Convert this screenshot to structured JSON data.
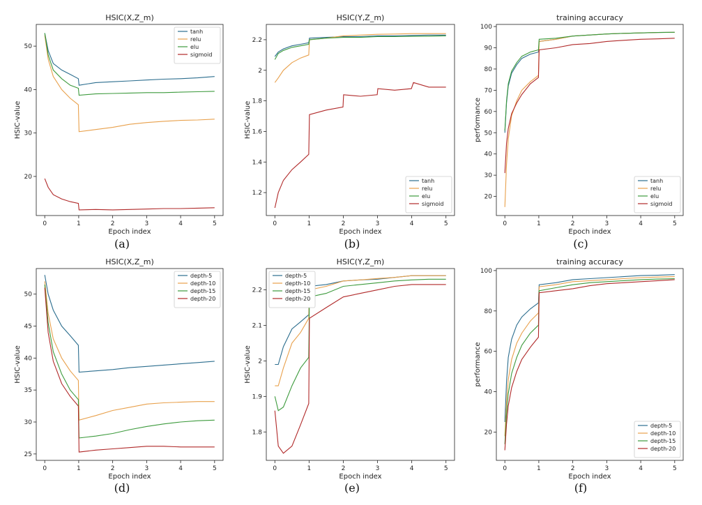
{
  "colors": {
    "tanh": "#2b6d8e",
    "relu": "#e8a04b",
    "elu": "#3c9a3c",
    "sigmoid": "#b02828",
    "depth-5": "#2b6d8e",
    "depth-10": "#e8a04b",
    "depth-15": "#3c9a3c",
    "depth-20": "#b02828",
    "axis": "#222222"
  },
  "chart_data": [
    {
      "id": "a",
      "type": "line",
      "caption": "(a)",
      "title": "HSIC(X,Z_m)",
      "xlabel": "Epoch index",
      "ylabel": "HSIC-value",
      "xlim": [
        -0.25,
        5.25
      ],
      "ylim": [
        11,
        55
      ],
      "xticks": [
        0,
        1,
        2,
        3,
        4,
        5
      ],
      "yticks": [
        20,
        30,
        40,
        50
      ],
      "legend_position": "top-right",
      "series": [
        {
          "name": "tanh",
          "x": [
            0,
            0.1,
            0.25,
            0.5,
            0.75,
            0.99,
            1.01,
            1.5,
            2,
            2.5,
            3,
            3.5,
            4,
            4.5,
            5
          ],
          "values": [
            53,
            49,
            46,
            44.5,
            43.5,
            42.5,
            41,
            41.6,
            41.8,
            42,
            42.2,
            42.4,
            42.5,
            42.7,
            43
          ]
        },
        {
          "name": "relu",
          "x": [
            0,
            0.1,
            0.25,
            0.5,
            0.75,
            0.99,
            1.01,
            1.5,
            2,
            2.5,
            3,
            3.5,
            4,
            4.5,
            5
          ],
          "values": [
            52.5,
            47,
            43,
            40,
            38,
            36.5,
            30.3,
            30.8,
            31.3,
            32,
            32.4,
            32.7,
            32.9,
            33,
            33.2
          ]
        },
        {
          "name": "elu",
          "x": [
            0,
            0.1,
            0.25,
            0.5,
            0.75,
            0.99,
            1.01,
            1.5,
            2,
            2.5,
            3,
            3.5,
            4,
            4.5,
            5
          ],
          "values": [
            53,
            48,
            44.5,
            42.5,
            41,
            40.3,
            38.7,
            39,
            39.1,
            39.2,
            39.3,
            39.3,
            39.4,
            39.5,
            39.6
          ]
        },
        {
          "name": "sigmoid",
          "x": [
            0,
            0.1,
            0.25,
            0.5,
            0.75,
            0.99,
            1.01,
            1.5,
            2,
            2.5,
            3,
            3.5,
            4,
            4.5,
            5
          ],
          "values": [
            19.5,
            17.5,
            15.8,
            14.8,
            14.2,
            13.8,
            12.3,
            12.4,
            12.3,
            12.4,
            12.5,
            12.6,
            12.6,
            12.7,
            12.8
          ]
        }
      ]
    },
    {
      "id": "b",
      "type": "line",
      "caption": "(b)",
      "title": "HSIC(Y,Z_m)",
      "xlabel": "Epoch index",
      "ylabel": "HSIC-value",
      "xlim": [
        -0.25,
        5.25
      ],
      "ylim": [
        1.05,
        2.3
      ],
      "xticks": [
        0,
        1,
        2,
        3,
        4,
        5
      ],
      "yticks": [
        1.2,
        1.4,
        1.6,
        1.8,
        2.0,
        2.2
      ],
      "legend_position": "bottom-right",
      "series": [
        {
          "name": "tanh",
          "x": [
            0,
            0.1,
            0.25,
            0.5,
            0.75,
            0.99,
            1.01,
            1.5,
            2,
            2.5,
            3,
            3.5,
            4,
            4.5,
            5
          ],
          "values": [
            2.09,
            2.12,
            2.14,
            2.16,
            2.17,
            2.18,
            2.21,
            2.215,
            2.22,
            2.22,
            2.225,
            2.225,
            2.228,
            2.23,
            2.23
          ]
        },
        {
          "name": "relu",
          "x": [
            0,
            0.1,
            0.25,
            0.5,
            0.75,
            0.99,
            1.01,
            1.5,
            2,
            2.5,
            3,
            3.5,
            4,
            4.5,
            5
          ],
          "values": [
            1.92,
            1.95,
            2.0,
            2.05,
            2.08,
            2.1,
            2.2,
            2.21,
            2.225,
            2.23,
            2.235,
            2.237,
            2.24,
            2.24,
            2.24
          ]
        },
        {
          "name": "elu",
          "x": [
            0,
            0.1,
            0.25,
            0.5,
            0.75,
            0.99,
            1.01,
            1.5,
            2,
            2.5,
            3,
            3.5,
            4,
            4.5,
            5
          ],
          "values": [
            2.07,
            2.11,
            2.13,
            2.15,
            2.16,
            2.17,
            2.2,
            2.21,
            2.215,
            2.215,
            2.22,
            2.22,
            2.222,
            2.223,
            2.225
          ]
        },
        {
          "name": "sigmoid",
          "x": [
            0,
            0.1,
            0.25,
            0.5,
            0.75,
            0.99,
            1.01,
            1.5,
            1.99,
            2.01,
            2.5,
            2.99,
            3.01,
            3.5,
            3.99,
            4.05,
            4.5,
            5
          ],
          "values": [
            1.1,
            1.2,
            1.28,
            1.35,
            1.4,
            1.45,
            1.71,
            1.74,
            1.76,
            1.84,
            1.83,
            1.84,
            1.88,
            1.87,
            1.88,
            1.92,
            1.89,
            1.89
          ]
        }
      ]
    },
    {
      "id": "c",
      "type": "line",
      "caption": "(c)",
      "title": "training accuracy",
      "xlabel": "Epoch index",
      "ylabel": "performance",
      "xlim": [
        -0.25,
        5.25
      ],
      "ylim": [
        11,
        101
      ],
      "xticks": [
        0,
        1,
        2,
        3,
        4,
        5
      ],
      "yticks": [
        20,
        30,
        40,
        50,
        60,
        70,
        80,
        90,
        100
      ],
      "legend_position": "bottom-right",
      "series": [
        {
          "name": "tanh",
          "x": [
            0,
            0.05,
            0.1,
            0.2,
            0.35,
            0.5,
            0.75,
            0.99,
            1.01,
            1.5,
            2,
            2.5,
            3,
            3.5,
            4,
            4.5,
            5
          ],
          "values": [
            50,
            64,
            72,
            78,
            82,
            85,
            87,
            88,
            93,
            94,
            95.5,
            96,
            96.5,
            96.8,
            97,
            97.2,
            97.3
          ]
        },
        {
          "name": "relu",
          "x": [
            0,
            0.05,
            0.1,
            0.2,
            0.35,
            0.5,
            0.75,
            0.99,
            1.01,
            1.5,
            2,
            2.5,
            3,
            3.5,
            4,
            4.5,
            5
          ],
          "values": [
            15,
            35,
            47,
            58,
            65,
            70,
            74,
            77,
            93,
            94,
            95.5,
            96,
            96.5,
            96.8,
            97,
            97.2,
            97.3
          ]
        },
        {
          "name": "elu",
          "x": [
            0,
            0.05,
            0.1,
            0.2,
            0.35,
            0.5,
            0.75,
            0.99,
            1.01,
            1.5,
            2,
            2.5,
            3,
            3.5,
            4,
            4.5,
            5
          ],
          "values": [
            51,
            65,
            73,
            79,
            83,
            86,
            88,
            89,
            94,
            94.5,
            95.5,
            96,
            96.5,
            96.8,
            97,
            97.2,
            97.3
          ]
        },
        {
          "name": "sigmoid",
          "x": [
            0,
            0.05,
            0.1,
            0.2,
            0.35,
            0.5,
            0.75,
            0.99,
            1.01,
            1.5,
            2,
            2.5,
            3,
            3.5,
            4,
            4.5,
            5
          ],
          "values": [
            31,
            45,
            52,
            59,
            64,
            68,
            73,
            76,
            89,
            90,
            91.5,
            92,
            93,
            93.5,
            94,
            94.2,
            94.5
          ]
        }
      ]
    },
    {
      "id": "d",
      "type": "line",
      "caption": "(d)",
      "title": "HSIC(X,Z_m)",
      "xlabel": "Epoch index",
      "ylabel": "HSIC-value",
      "xlim": [
        -0.25,
        5.25
      ],
      "ylim": [
        24,
        54
      ],
      "xticks": [
        0,
        1,
        2,
        3,
        4,
        5
      ],
      "yticks": [
        25,
        30,
        35,
        40,
        45,
        50
      ],
      "legend_position": "top-right",
      "series": [
        {
          "name": "depth-5",
          "x": [
            0,
            0.1,
            0.25,
            0.5,
            0.75,
            0.99,
            1.01,
            1.5,
            2,
            2.5,
            3,
            3.5,
            4,
            4.5,
            5
          ],
          "values": [
            53,
            50,
            47.5,
            45,
            43.5,
            42,
            37.8,
            38,
            38.2,
            38.5,
            38.7,
            38.9,
            39.1,
            39.3,
            39.5
          ]
        },
        {
          "name": "depth-10",
          "x": [
            0,
            0.1,
            0.25,
            0.5,
            0.75,
            0.99,
            1.01,
            1.5,
            2,
            2.5,
            3,
            3.5,
            4,
            4.5,
            5
          ],
          "values": [
            52,
            47,
            43,
            40,
            38,
            36.5,
            30.3,
            31,
            31.8,
            32.3,
            32.8,
            33,
            33.1,
            33.2,
            33.2
          ]
        },
        {
          "name": "depth-15",
          "x": [
            0,
            0.1,
            0.25,
            0.5,
            0.75,
            0.99,
            1.01,
            1.5,
            2,
            2.5,
            3,
            3.5,
            4,
            4.5,
            5
          ],
          "values": [
            51.5,
            45.5,
            41,
            37.5,
            35,
            33.5,
            27.5,
            27.8,
            28.2,
            28.8,
            29.3,
            29.7,
            30,
            30.2,
            30.3
          ]
        },
        {
          "name": "depth-20",
          "x": [
            0,
            0.1,
            0.25,
            0.5,
            0.75,
            0.99,
            1.01,
            1.5,
            2,
            2.5,
            3,
            3.5,
            4,
            4.5,
            5
          ],
          "values": [
            51,
            44,
            39.5,
            36,
            34,
            32.5,
            25.3,
            25.6,
            25.8,
            26,
            26.2,
            26.2,
            26.1,
            26.1,
            26.1
          ]
        }
      ]
    },
    {
      "id": "e",
      "type": "line",
      "caption": "(e)",
      "title": "HSIC(Y,Z_m)",
      "xlabel": "Epoch index",
      "ylabel": "HSIC-value",
      "xlim": [
        -0.25,
        5.25
      ],
      "ylim": [
        1.72,
        2.26
      ],
      "xticks": [
        0,
        1,
        2,
        3,
        4,
        5
      ],
      "yticks": [
        1.8,
        1.9,
        2.0,
        2.1,
        2.2
      ],
      "legend_position": "top-left",
      "series": [
        {
          "name": "depth-5",
          "x": [
            0,
            0.1,
            0.25,
            0.5,
            0.75,
            0.99,
            1.01,
            1.5,
            2,
            2.5,
            3,
            3.5,
            4,
            4.5,
            5
          ],
          "values": [
            1.99,
            1.99,
            2.04,
            2.09,
            2.11,
            2.13,
            2.21,
            2.215,
            2.225,
            2.228,
            2.23,
            2.235,
            2.24,
            2.24,
            2.24
          ]
        },
        {
          "name": "depth-10",
          "x": [
            0,
            0.1,
            0.25,
            0.5,
            0.75,
            0.99,
            1.01,
            1.5,
            2,
            2.5,
            3,
            3.5,
            4,
            4.5,
            5
          ],
          "values": [
            1.93,
            1.93,
            1.98,
            2.05,
            2.08,
            2.12,
            2.2,
            2.21,
            2.225,
            2.228,
            2.232,
            2.235,
            2.24,
            2.24,
            2.24
          ]
        },
        {
          "name": "depth-15",
          "x": [
            0,
            0.1,
            0.25,
            0.5,
            0.75,
            0.99,
            1.01,
            1.5,
            2,
            2.5,
            3,
            3.5,
            4,
            4.5,
            5
          ],
          "values": [
            1.9,
            1.86,
            1.87,
            1.93,
            1.98,
            2.01,
            2.18,
            2.19,
            2.21,
            2.215,
            2.22,
            2.225,
            2.228,
            2.23,
            2.23
          ]
        },
        {
          "name": "depth-20",
          "x": [
            0,
            0.1,
            0.25,
            0.5,
            0.75,
            0.99,
            1.01,
            1.5,
            2,
            2.5,
            3,
            3.5,
            4,
            4.5,
            5
          ],
          "values": [
            1.86,
            1.76,
            1.74,
            1.76,
            1.82,
            1.88,
            2.12,
            2.15,
            2.18,
            2.19,
            2.2,
            2.21,
            2.215,
            2.215,
            2.215
          ]
        }
      ]
    },
    {
      "id": "f",
      "type": "line",
      "caption": "(f)",
      "title": "training accuracy",
      "xlabel": "Epoch index",
      "ylabel": "performance",
      "xlim": [
        -0.25,
        5.25
      ],
      "ylim": [
        6,
        101
      ],
      "xticks": [
        0,
        1,
        2,
        3,
        4,
        5
      ],
      "yticks": [
        20,
        40,
        60,
        80,
        100
      ],
      "legend_position": "bottom-right",
      "series": [
        {
          "name": "depth-5",
          "x": [
            0,
            0.05,
            0.1,
            0.2,
            0.35,
            0.5,
            0.75,
            0.99,
            1.01,
            1.5,
            2,
            2.5,
            3,
            3.5,
            4,
            4.5,
            5
          ],
          "values": [
            25,
            45,
            57,
            66,
            73,
            77,
            81,
            84,
            93,
            94,
            95.5,
            96,
            96.5,
            97,
            97.5,
            97.7,
            98
          ]
        },
        {
          "name": "depth-10",
          "x": [
            0,
            0.05,
            0.1,
            0.2,
            0.35,
            0.5,
            0.75,
            0.99,
            1.01,
            1.5,
            2,
            2.5,
            3,
            3.5,
            4,
            4.5,
            5
          ],
          "values": [
            18,
            35,
            46,
            56,
            64,
            69,
            75,
            79,
            92,
            93,
            94.5,
            95,
            95.5,
            96,
            96.5,
            96.8,
            97
          ]
        },
        {
          "name": "depth-15",
          "x": [
            0,
            0.05,
            0.1,
            0.2,
            0.35,
            0.5,
            0.75,
            0.99,
            1.01,
            1.5,
            2,
            2.5,
            3,
            3.5,
            4,
            4.5,
            5
          ],
          "values": [
            14,
            29,
            39,
            49,
            57,
            63,
            69,
            73,
            90,
            91.5,
            93,
            94,
            94.5,
            95,
            95.5,
            95.8,
            96
          ]
        },
        {
          "name": "depth-20",
          "x": [
            0,
            0.05,
            0.1,
            0.2,
            0.35,
            0.5,
            0.75,
            0.99,
            1.01,
            1.5,
            2,
            2.5,
            3,
            3.5,
            4,
            4.5,
            5
          ],
          "values": [
            11,
            24,
            33,
            42,
            50,
            56,
            62,
            67,
            89,
            90,
            91,
            92.5,
            93.5,
            94,
            94.5,
            95,
            95.5
          ]
        }
      ]
    }
  ]
}
